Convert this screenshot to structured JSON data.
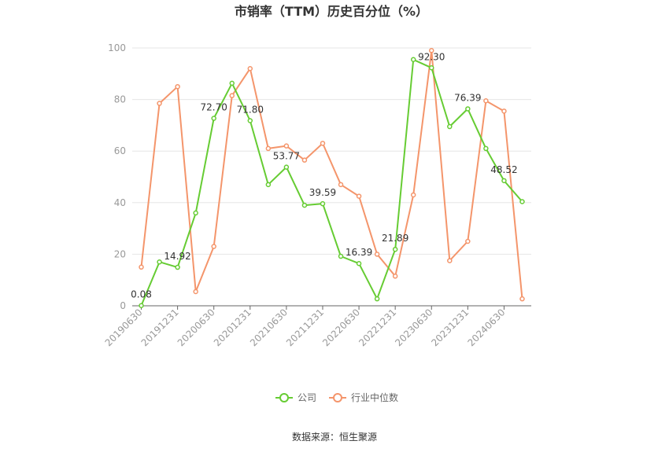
{
  "chart_data": {
    "type": "line",
    "title": "市销率（TTM）历史百分位（%）",
    "xlabel": "",
    "ylabel": "",
    "ylim": [
      0,
      100
    ],
    "yticks": [
      0,
      20,
      40,
      60,
      80,
      100
    ],
    "xticks": [
      "20190630",
      "20191231",
      "20200630",
      "20201231",
      "20210630",
      "20211231",
      "20220630",
      "20221231",
      "20230630",
      "20231231",
      "20240630"
    ],
    "categories": [
      "20190630",
      "20190930",
      "20191231",
      "20200331",
      "20200630",
      "20200930",
      "20201231",
      "20210331",
      "20210630",
      "20210930",
      "20211231",
      "20220331",
      "20220630",
      "20220930",
      "20221231",
      "20230331",
      "20230630",
      "20230930",
      "20231231",
      "20240331",
      "20240630",
      "20240930"
    ],
    "series": [
      {
        "name": "公司",
        "color": "#66cc33",
        "values": [
          0.08,
          17.0,
          14.92,
          36.0,
          72.7,
          86.3,
          71.8,
          47.0,
          53.77,
          39.0,
          39.59,
          19.2,
          16.39,
          2.7,
          21.89,
          95.5,
          92.3,
          69.5,
          76.39,
          61.0,
          48.52,
          40.4
        ]
      },
      {
        "name": "行业中位数",
        "color": "#f4956b",
        "values": [
          15.0,
          78.5,
          85.0,
          5.5,
          23.0,
          81.5,
          92.0,
          61.0,
          62.0,
          56.5,
          63.0,
          47.0,
          42.5,
          20.0,
          11.5,
          43.0,
          99.0,
          17.5,
          25.0,
          79.5,
          75.5,
          2.7
        ]
      }
    ],
    "data_labels": [
      {
        "index": 0,
        "text": "0.08"
      },
      {
        "index": 2,
        "text": "14.92"
      },
      {
        "index": 4,
        "text": "72.70"
      },
      {
        "index": 6,
        "text": "71.80"
      },
      {
        "index": 8,
        "text": "53.77"
      },
      {
        "index": 10,
        "text": "39.59"
      },
      {
        "index": 12,
        "text": "16.39"
      },
      {
        "index": 14,
        "text": "21.89"
      },
      {
        "index": 16,
        "text": "92.30"
      },
      {
        "index": 18,
        "text": "76.39"
      },
      {
        "index": 20,
        "text": "48.52"
      }
    ],
    "grid": true,
    "legend_position": "bottom-center"
  },
  "source_text": "数据来源：恒生聚源"
}
